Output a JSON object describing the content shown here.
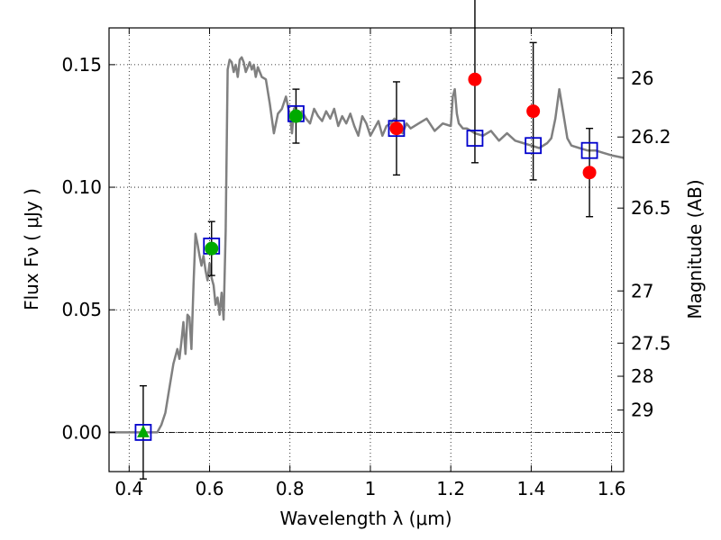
{
  "chart_data": {
    "type": "scatter",
    "xlabel": "Wavelength  λ (μm)",
    "ylabel": "Flux  Fν  ( μJy )",
    "ylabel_right": "Magnitude (AB)",
    "xlim": [
      0.35,
      1.63
    ],
    "ylim": [
      -0.016,
      0.165
    ],
    "grid": true,
    "x_ticks": [
      0.4,
      0.6,
      0.8,
      1.0,
      1.2,
      1.4,
      1.6
    ],
    "x_tick_labels": [
      "0.4",
      "0.6",
      "0.8",
      "1",
      "1.2",
      "1.4",
      "1.6"
    ],
    "y_ticks": [
      0.0,
      0.05,
      0.1,
      0.15
    ],
    "y_tick_labels": [
      "0.00",
      "0.05",
      "0.10",
      "0.15"
    ],
    "right_ticks": [
      {
        "label": "26",
        "flux": 0.1445
      },
      {
        "label": "26.2",
        "flux": 0.1205
      },
      {
        "label": "26.5",
        "flux": 0.0915
      },
      {
        "label": "27",
        "flux": 0.0577
      },
      {
        "label": "27.5",
        "flux": 0.0364
      },
      {
        "label": "28",
        "flux": 0.0229
      },
      {
        "label": "29",
        "flux": 0.0091
      }
    ],
    "zero_line": 0.0,
    "model_sed": {
      "color": "#808080",
      "x": [
        0.35,
        0.47,
        0.48,
        0.49,
        0.5,
        0.51,
        0.52,
        0.525,
        0.53,
        0.535,
        0.54,
        0.545,
        0.55,
        0.555,
        0.56,
        0.565,
        0.57,
        0.575,
        0.58,
        0.585,
        0.59,
        0.595,
        0.6,
        0.605,
        0.61,
        0.615,
        0.62,
        0.625,
        0.63,
        0.635,
        0.64,
        0.645,
        0.65,
        0.655,
        0.66,
        0.665,
        0.67,
        0.675,
        0.68,
        0.685,
        0.69,
        0.695,
        0.7,
        0.705,
        0.71,
        0.715,
        0.72,
        0.73,
        0.74,
        0.75,
        0.76,
        0.77,
        0.78,
        0.79,
        0.8,
        0.805,
        0.81,
        0.815,
        0.82,
        0.83,
        0.84,
        0.85,
        0.86,
        0.87,
        0.88,
        0.89,
        0.9,
        0.91,
        0.92,
        0.93,
        0.94,
        0.95,
        0.96,
        0.97,
        0.98,
        0.99,
        1.0,
        1.01,
        1.02,
        1.03,
        1.04,
        1.05,
        1.06,
        1.07,
        1.08,
        1.09,
        1.1,
        1.12,
        1.14,
        1.16,
        1.18,
        1.2,
        1.205,
        1.21,
        1.215,
        1.22,
        1.23,
        1.24,
        1.26,
        1.28,
        1.3,
        1.32,
        1.34,
        1.36,
        1.38,
        1.4,
        1.42,
        1.44,
        1.45,
        1.46,
        1.47,
        1.48,
        1.49,
        1.5,
        1.52,
        1.54,
        1.56,
        1.58,
        1.6,
        1.63
      ],
      "y": [
        0.0,
        0.0,
        0.003,
        0.008,
        0.018,
        0.028,
        0.034,
        0.03,
        0.037,
        0.045,
        0.032,
        0.048,
        0.047,
        0.034,
        0.06,
        0.081,
        0.077,
        0.072,
        0.068,
        0.072,
        0.066,
        0.062,
        0.069,
        0.063,
        0.06,
        0.052,
        0.055,
        0.048,
        0.057,
        0.046,
        0.082,
        0.148,
        0.152,
        0.151,
        0.147,
        0.15,
        0.145,
        0.152,
        0.153,
        0.151,
        0.147,
        0.149,
        0.151,
        0.148,
        0.15,
        0.145,
        0.149,
        0.145,
        0.144,
        0.134,
        0.122,
        0.13,
        0.132,
        0.137,
        0.129,
        0.122,
        0.132,
        0.133,
        0.127,
        0.131,
        0.128,
        0.126,
        0.132,
        0.129,
        0.127,
        0.131,
        0.128,
        0.132,
        0.125,
        0.129,
        0.126,
        0.13,
        0.125,
        0.121,
        0.129,
        0.126,
        0.121,
        0.124,
        0.127,
        0.121,
        0.125,
        0.126,
        0.128,
        0.124,
        0.122,
        0.126,
        0.124,
        0.126,
        0.128,
        0.123,
        0.126,
        0.125,
        0.137,
        0.14,
        0.13,
        0.126,
        0.124,
        0.124,
        0.122,
        0.121,
        0.123,
        0.119,
        0.122,
        0.119,
        0.118,
        0.117,
        0.116,
        0.118,
        0.12,
        0.128,
        0.14,
        0.13,
        0.12,
        0.117,
        0.116,
        0.115,
        0.115,
        0.114,
        0.113,
        0.112
      ]
    },
    "model_points": {
      "color": "#0000cc",
      "marker": "open-square",
      "x": [
        0.435,
        0.605,
        0.815,
        1.065,
        1.26,
        1.405,
        1.545
      ],
      "y": [
        0.0,
        0.076,
        0.13,
        0.124,
        0.12,
        0.117,
        0.115
      ]
    },
    "observed_points": [
      {
        "x": 0.435,
        "y": 0.0,
        "err": 0.019,
        "color": "#00aa00",
        "marker": "triangle"
      },
      {
        "x": 0.605,
        "y": 0.075,
        "err": 0.011,
        "color": "#00aa00",
        "marker": "circle"
      },
      {
        "x": 0.815,
        "y": 0.129,
        "err": 0.011,
        "color": "#00aa00",
        "marker": "circle"
      },
      {
        "x": 1.065,
        "y": 0.124,
        "err": 0.019,
        "color": "#ff0000",
        "marker": "circle"
      },
      {
        "x": 1.26,
        "y": 0.144,
        "err": 0.034,
        "color": "#ff0000",
        "marker": "circle"
      },
      {
        "x": 1.405,
        "y": 0.131,
        "err": 0.028,
        "color": "#ff0000",
        "marker": "circle"
      },
      {
        "x": 1.545,
        "y": 0.106,
        "err": 0.018,
        "color": "#ff0000",
        "marker": "circle"
      }
    ]
  }
}
